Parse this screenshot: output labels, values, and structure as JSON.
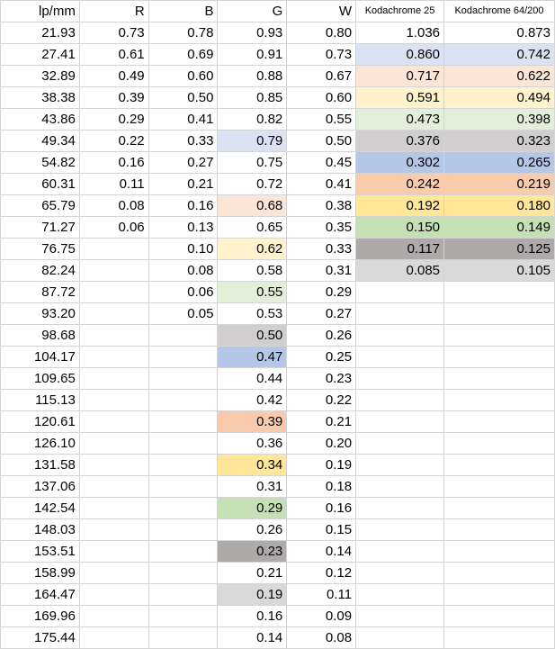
{
  "columns": [
    "lp/mm",
    "R",
    "B",
    "G",
    "W",
    "Kodachrome 25",
    "Kodachrome 64/200"
  ],
  "colors": {
    "blue-light": "#dae3f3",
    "peach": "#fbe5d6",
    "cream": "#fff2cc",
    "green-light": "#e2f0d9",
    "gray": "#d0cece",
    "blue": "#b4c7e7",
    "orange": "#f8cbad",
    "yellow": "#ffe699",
    "green": "#c5e0b4",
    "gray-dark": "#aeaaaa",
    "gray-light": "#d9d9d9"
  },
  "rows": [
    {
      "lp": "21.93",
      "r": "0.73",
      "b": "0.78",
      "g": "0.93",
      "w": "0.80",
      "k25": "1.036",
      "k64": "0.873",
      "gc": "",
      "kc": ""
    },
    {
      "lp": "27.41",
      "r": "0.61",
      "b": "0.69",
      "g": "0.91",
      "w": "0.73",
      "k25": "0.860",
      "k64": "0.742",
      "gc": "",
      "kc": "blue-light"
    },
    {
      "lp": "32.89",
      "r": "0.49",
      "b": "0.60",
      "g": "0.88",
      "w": "0.67",
      "k25": "0.717",
      "k64": "0.622",
      "gc": "",
      "kc": "peach"
    },
    {
      "lp": "38.38",
      "r": "0.39",
      "b": "0.50",
      "g": "0.85",
      "w": "0.60",
      "k25": "0.591",
      "k64": "0.494",
      "gc": "",
      "kc": "cream"
    },
    {
      "lp": "43.86",
      "r": "0.29",
      "b": "0.41",
      "g": "0.82",
      "w": "0.55",
      "k25": "0.473",
      "k64": "0.398",
      "gc": "",
      "kc": "green-light"
    },
    {
      "lp": "49.34",
      "r": "0.22",
      "b": "0.33",
      "g": "0.79",
      "w": "0.50",
      "k25": "0.376",
      "k64": "0.323",
      "gc": "blue-light",
      "kc": "gray"
    },
    {
      "lp": "54.82",
      "r": "0.16",
      "b": "0.27",
      "g": "0.75",
      "w": "0.45",
      "k25": "0.302",
      "k64": "0.265",
      "gc": "",
      "kc": "blue"
    },
    {
      "lp": "60.31",
      "r": "0.11",
      "b": "0.21",
      "g": "0.72",
      "w": "0.41",
      "k25": "0.242",
      "k64": "0.219",
      "gc": "",
      "kc": "orange"
    },
    {
      "lp": "65.79",
      "r": "0.08",
      "b": "0.16",
      "g": "0.68",
      "w": "0.38",
      "k25": "0.192",
      "k64": "0.180",
      "gc": "peach",
      "kc": "yellow"
    },
    {
      "lp": "71.27",
      "r": "0.06",
      "b": "0.13",
      "g": "0.65",
      "w": "0.35",
      "k25": "0.150",
      "k64": "0.149",
      "gc": "",
      "kc": "green"
    },
    {
      "lp": "76.75",
      "r": "",
      "b": "0.10",
      "g": "0.62",
      "w": "0.33",
      "k25": "0.117",
      "k64": "0.125",
      "gc": "cream",
      "kc": "gray-dark"
    },
    {
      "lp": "82.24",
      "r": "",
      "b": "0.08",
      "g": "0.58",
      "w": "0.31",
      "k25": "0.085",
      "k64": "0.105",
      "gc": "",
      "kc": "gray-light"
    },
    {
      "lp": "87.72",
      "r": "",
      "b": "0.06",
      "g": "0.55",
      "w": "0.29",
      "k25": "",
      "k64": "",
      "gc": "green-light",
      "kc": ""
    },
    {
      "lp": "93.20",
      "r": "",
      "b": "0.05",
      "g": "0.53",
      "w": "0.27",
      "k25": "",
      "k64": "",
      "gc": "",
      "kc": ""
    },
    {
      "lp": "98.68",
      "r": "",
      "b": "",
      "g": "0.50",
      "w": "0.26",
      "k25": "",
      "k64": "",
      "gc": "gray",
      "kc": ""
    },
    {
      "lp": "104.17",
      "r": "",
      "b": "",
      "g": "0.47",
      "w": "0.25",
      "k25": "",
      "k64": "",
      "gc": "blue",
      "kc": ""
    },
    {
      "lp": "109.65",
      "r": "",
      "b": "",
      "g": "0.44",
      "w": "0.23",
      "k25": "",
      "k64": "",
      "gc": "",
      "kc": ""
    },
    {
      "lp": "115.13",
      "r": "",
      "b": "",
      "g": "0.42",
      "w": "0.22",
      "k25": "",
      "k64": "",
      "gc": "",
      "kc": ""
    },
    {
      "lp": "120.61",
      "r": "",
      "b": "",
      "g": "0.39",
      "w": "0.21",
      "k25": "",
      "k64": "",
      "gc": "orange",
      "kc": ""
    },
    {
      "lp": "126.10",
      "r": "",
      "b": "",
      "g": "0.36",
      "w": "0.20",
      "k25": "",
      "k64": "",
      "gc": "",
      "kc": ""
    },
    {
      "lp": "131.58",
      "r": "",
      "b": "",
      "g": "0.34",
      "w": "0.19",
      "k25": "",
      "k64": "",
      "gc": "yellow",
      "kc": ""
    },
    {
      "lp": "137.06",
      "r": "",
      "b": "",
      "g": "0.31",
      "w": "0.18",
      "k25": "",
      "k64": "",
      "gc": "",
      "kc": ""
    },
    {
      "lp": "142.54",
      "r": "",
      "b": "",
      "g": "0.29",
      "w": "0.16",
      "k25": "",
      "k64": "",
      "gc": "green",
      "kc": ""
    },
    {
      "lp": "148.03",
      "r": "",
      "b": "",
      "g": "0.26",
      "w": "0.15",
      "k25": "",
      "k64": "",
      "gc": "",
      "kc": ""
    },
    {
      "lp": "153.51",
      "r": "",
      "b": "",
      "g": "0.23",
      "w": "0.14",
      "k25": "",
      "k64": "",
      "gc": "gray-dark",
      "kc": ""
    },
    {
      "lp": "158.99",
      "r": "",
      "b": "",
      "g": "0.21",
      "w": "0.12",
      "k25": "",
      "k64": "",
      "gc": "",
      "kc": ""
    },
    {
      "lp": "164.47",
      "r": "",
      "b": "",
      "g": "0.19",
      "w": "0.11",
      "k25": "",
      "k64": "",
      "gc": "gray-light",
      "kc": ""
    },
    {
      "lp": "169.96",
      "r": "",
      "b": "",
      "g": "0.16",
      "w": "0.09",
      "k25": "",
      "k64": "",
      "gc": "",
      "kc": ""
    },
    {
      "lp": "175.44",
      "r": "",
      "b": "",
      "g": "0.14",
      "w": "0.08",
      "k25": "",
      "k64": "",
      "gc": "",
      "kc": ""
    }
  ]
}
